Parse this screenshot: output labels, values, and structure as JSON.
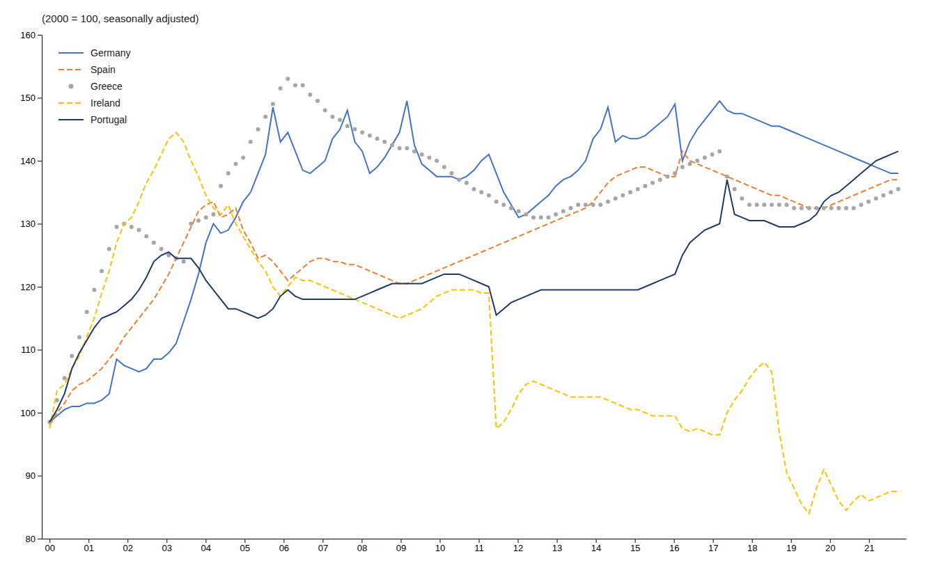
{
  "chart_data": {
    "type": "line",
    "title": "(2000 = 100, seasonally adjusted)",
    "x": [
      2000,
      2000.1908,
      2000.3816,
      2000.5724,
      2000.7632,
      2000.9539,
      2001.1447,
      2001.3355,
      2001.5263,
      2001.7171,
      2001.9079,
      2002.0987,
      2002.2895,
      2002.4803,
      2002.6711,
      2002.8618,
      2003.0526,
      2003.2434,
      2003.4342,
      2003.625,
      2003.8158,
      2004.0066,
      2004.1974,
      2004.3882,
      2004.5789,
      2004.7697,
      2004.9605,
      2005.1513,
      2005.3421,
      2005.5329,
      2005.7237,
      2005.9145,
      2006.1053,
      2006.2961,
      2006.4868,
      2006.6776,
      2006.8684,
      2007.0592,
      2007.25,
      2007.4408,
      2007.6316,
      2007.8224,
      2008.0132,
      2008.2039,
      2008.3947,
      2008.5855,
      2008.7763,
      2008.9671,
      2009.1579,
      2009.3487,
      2009.5395,
      2009.7303,
      2009.9211,
      2010.1118,
      2010.3026,
      2010.4934,
      2010.6842,
      2010.875,
      2011.0658,
      2011.2566,
      2011.4474,
      2011.6382,
      2011.8289,
      2012.0197,
      2012.2105,
      2012.4013,
      2012.5921,
      2012.7829,
      2012.9737,
      2013.1645,
      2013.3553,
      2013.5461,
      2013.7368,
      2013.9276,
      2014.1184,
      2014.3092,
      2014.5,
      2014.6908,
      2014.8816,
      2015.0724,
      2015.2632,
      2015.4539,
      2015.6447,
      2015.8355,
      2016.0263,
      2016.2171,
      2016.4079,
      2016.5987,
      2016.7895,
      2016.9803,
      2017.1711,
      2017.3618,
      2017.5526,
      2017.7434,
      2017.9342,
      2018.125,
      2018.3158,
      2018.5066,
      2018.6974,
      2018.8882,
      2019.0789,
      2019.2697,
      2019.4605,
      2019.6513,
      2019.8421,
      2020.0329,
      2020.2237,
      2020.4145,
      2020.6053,
      2020.7961,
      2020.9868,
      2021.1776,
      2021.3684,
      2021.5592,
      2021.75
    ],
    "series": [
      {
        "name": "Germany",
        "color": "#4472C4",
        "line_style": "solid",
        "values": [
          98.5,
          99.5,
          100.5,
          101.0,
          101.0,
          101.5,
          101.5,
          102.0,
          103.0,
          108.5,
          107.5,
          107.0,
          106.5,
          107.0,
          108.5,
          108.5,
          109.5,
          111.0,
          114.5,
          118.0,
          122.0,
          127.0,
          130.0,
          128.5,
          129.0,
          131.0,
          133.5,
          135.0,
          138.0,
          141.0,
          148.5,
          143.0,
          144.5,
          141.5,
          138.5,
          138.0,
          139.0,
          140.0,
          143.5,
          145.0,
          148.0,
          143.0,
          141.5,
          138.0,
          139.0,
          140.5,
          142.5,
          144.5,
          149.5,
          142.5,
          139.5,
          138.5,
          137.5,
          137.5,
          137.5,
          137.0,
          137.5,
          138.5,
          140.0,
          141.0,
          138.0,
          135.0,
          133.0,
          131.0,
          131.5,
          132.5,
          133.5,
          134.5,
          136.0,
          137.0,
          137.5,
          138.5,
          140.0,
          143.5,
          145.0,
          148.5,
          143.0,
          144.0,
          143.5,
          143.5,
          144.0,
          145.0,
          146.0,
          147.0,
          149.0,
          140.0,
          143.0,
          145.0,
          146.5,
          148.0,
          149.5,
          148.0,
          147.5,
          147.5,
          147.0,
          146.5,
          146.0,
          145.5,
          145.5,
          145.0,
          144.5,
          144.0,
          143.5,
          143.0,
          142.5,
          142.0,
          141.5,
          141.0,
          140.5,
          140.0,
          139.5,
          139.0,
          138.5,
          138.0,
          138.0
        ]
      },
      {
        "name": "Spain",
        "color": "#ED7D31",
        "line_style": "dashed",
        "values": [
          98.0,
          100.0,
          101.5,
          103.5,
          104.5,
          105.0,
          106.0,
          107.0,
          108.5,
          110.0,
          112.0,
          113.5,
          115.0,
          116.5,
          118.0,
          120.0,
          122.0,
          124.5,
          127.0,
          129.5,
          132.0,
          133.0,
          133.5,
          131.0,
          131.5,
          132.5,
          129.0,
          127.0,
          124.5,
          125.0,
          124.0,
          122.5,
          121.0,
          122.0,
          123.0,
          124.0,
          124.5,
          124.5,
          124.0,
          124.0,
          123.5,
          123.5,
          123.0,
          122.5,
          122.0,
          121.5,
          121.0,
          120.5,
          120.5,
          121.0,
          121.5,
          122.0,
          122.5,
          123.0,
          123.5,
          124.0,
          124.5,
          125.0,
          125.5,
          126.0,
          126.5,
          127.0,
          127.5,
          128.0,
          128.5,
          129.0,
          129.5,
          130.0,
          130.5,
          131.0,
          131.5,
          132.0,
          132.5,
          133.5,
          135.0,
          136.5,
          137.5,
          138.0,
          138.5,
          139.0,
          139.0,
          138.5,
          138.0,
          137.5,
          137.5,
          141.5,
          140.0,
          139.5,
          139.0,
          138.5,
          138.0,
          137.5,
          137.0,
          136.5,
          136.0,
          135.5,
          135.0,
          134.5,
          134.5,
          134.0,
          133.5,
          133.0,
          132.5,
          132.5,
          132.5,
          133.0,
          133.5,
          134.0,
          134.5,
          135.0,
          135.5,
          136.0,
          136.5,
          137.0,
          137.0
        ]
      },
      {
        "name": "Greece",
        "color": "#A6A6A6",
        "line_style": "none",
        "marker": "dot",
        "values": [
          98.5,
          102.0,
          105.5,
          109.0,
          112.0,
          116.0,
          119.5,
          122.5,
          126.0,
          129.5,
          130.0,
          129.5,
          129.0,
          128.0,
          127.0,
          126.0,
          125.0,
          124.5,
          124.0,
          130.0,
          130.5,
          131.0,
          131.5,
          136.0,
          138.0,
          139.5,
          140.5,
          143.0,
          145.0,
          147.0,
          149.0,
          151.5,
          153.0,
          152.0,
          152.0,
          150.5,
          149.5,
          148.0,
          147.0,
          146.5,
          145.5,
          145.0,
          144.5,
          144.0,
          143.5,
          143.0,
          142.5,
          142.0,
          142.0,
          141.5,
          141.0,
          140.5,
          140.0,
          139.0,
          138.0,
          137.0,
          136.5,
          135.5,
          135.0,
          134.5,
          133.5,
          133.0,
          132.5,
          132.0,
          131.5,
          131.0,
          131.0,
          131.0,
          131.5,
          132.0,
          132.5,
          133.0,
          133.0,
          133.0,
          133.0,
          133.5,
          134.0,
          134.5,
          135.0,
          135.5,
          136.0,
          136.5,
          137.0,
          137.5,
          138.0,
          139.0,
          139.5,
          140.0,
          140.5,
          141.0,
          141.5,
          137.5,
          135.5,
          134.0,
          133.0,
          133.0,
          133.0,
          133.0,
          133.0,
          133.0,
          132.5,
          132.5,
          132.5,
          132.5,
          132.5,
          132.5,
          132.5,
          132.5,
          132.5,
          133.0,
          133.5,
          134.0,
          134.5,
          135.0,
          135.5
        ]
      },
      {
        "name": "Ireland",
        "color": "#FFC000",
        "line_style": "dashed",
        "values": [
          97.5,
          103.5,
          104.5,
          107.0,
          109.0,
          112.0,
          115.0,
          119.0,
          122.5,
          127.0,
          130.0,
          131.0,
          133.5,
          136.5,
          138.5,
          141.0,
          143.5,
          144.5,
          143.0,
          140.0,
          137.5,
          134.5,
          132.5,
          131.5,
          133.0,
          130.0,
          128.0,
          126.0,
          124.0,
          122.5,
          120.0,
          118.5,
          120.0,
          121.5,
          121.0,
          121.0,
          120.5,
          120.0,
          119.5,
          119.0,
          118.5,
          118.0,
          117.5,
          117.0,
          116.5,
          116.0,
          115.5,
          115.0,
          115.5,
          116.0,
          116.5,
          117.5,
          118.5,
          119.0,
          119.5,
          119.5,
          119.5,
          119.5,
          119.0,
          119.0,
          97.5,
          98.5,
          100.5,
          103.0,
          104.5,
          105.0,
          104.5,
          104.0,
          103.5,
          103.0,
          102.5,
          102.5,
          102.5,
          102.5,
          102.5,
          102.0,
          101.5,
          101.0,
          100.5,
          100.5,
          100.0,
          99.5,
          99.5,
          99.5,
          99.5,
          97.5,
          97.0,
          97.5,
          97.0,
          96.5,
          96.5,
          100.0,
          102.0,
          103.5,
          105.5,
          107.0,
          108.0,
          106.5,
          97.0,
          90.5,
          88.0,
          85.5,
          84.0,
          88.0,
          91.0,
          88.5,
          86.0,
          84.5,
          86.0,
          87.0,
          86.0,
          86.5,
          87.0,
          87.5,
          87.5
        ]
      },
      {
        "name": "Portugal",
        "color": "#1F3864",
        "line_style": "solid",
        "values": [
          98.5,
          100.5,
          103.0,
          107.0,
          109.5,
          111.5,
          113.5,
          115.0,
          115.5,
          116.0,
          117.0,
          118.0,
          119.5,
          121.5,
          124.0,
          125.0,
          125.5,
          124.5,
          124.5,
          124.5,
          123.0,
          121.0,
          119.5,
          118.0,
          116.5,
          116.5,
          116.0,
          115.5,
          115.0,
          115.5,
          116.5,
          118.5,
          119.5,
          118.5,
          118.0,
          118.0,
          118.0,
          118.0,
          118.0,
          118.0,
          118.0,
          118.0,
          118.5,
          119.0,
          119.5,
          120.0,
          120.5,
          120.5,
          120.5,
          120.5,
          120.5,
          121.0,
          121.5,
          122.0,
          122.0,
          122.0,
          121.5,
          121.0,
          120.5,
          120.0,
          115.5,
          116.5,
          117.5,
          118.0,
          118.5,
          119.0,
          119.5,
          119.5,
          119.5,
          119.5,
          119.5,
          119.5,
          119.5,
          119.5,
          119.5,
          119.5,
          119.5,
          119.5,
          119.5,
          119.5,
          120.0,
          120.5,
          121.0,
          121.5,
          122.0,
          125.0,
          127.0,
          128.0,
          129.0,
          129.5,
          130.0,
          137.0,
          131.5,
          131.0,
          130.5,
          130.5,
          130.5,
          130.0,
          129.5,
          129.5,
          129.5,
          130.0,
          130.5,
          131.5,
          133.5,
          134.5,
          135.0,
          136.0,
          137.0,
          138.0,
          139.0,
          140.0,
          140.5,
          141.0,
          141.5
        ]
      }
    ],
    "xlim": [
      1999.8,
      2021.95
    ],
    "xticks": [
      {
        "value": 2000,
        "label": "00"
      },
      {
        "value": 2001,
        "label": "01"
      },
      {
        "value": 2002,
        "label": "02"
      },
      {
        "value": 2003,
        "label": "03"
      },
      {
        "value": 2004,
        "label": "04"
      },
      {
        "value": 2005,
        "label": "05"
      },
      {
        "value": 2006,
        "label": "06"
      },
      {
        "value": 2007,
        "label": "07"
      },
      {
        "value": 2008,
        "label": "08"
      },
      {
        "value": 2009,
        "label": "09"
      },
      {
        "value": 2010,
        "label": "10"
      },
      {
        "value": 2011,
        "label": "11"
      },
      {
        "value": 2012,
        "label": "12"
      },
      {
        "value": 2013,
        "label": "13"
      },
      {
        "value": 2014,
        "label": "14"
      },
      {
        "value": 2015,
        "label": "15"
      },
      {
        "value": 2016,
        "label": "16"
      },
      {
        "value": 2017,
        "label": "17"
      },
      {
        "value": 2018,
        "label": "18"
      },
      {
        "value": 2019,
        "label": "19"
      },
      {
        "value": 2020,
        "label": "20"
      },
      {
        "value": 2021,
        "label": "21"
      }
    ],
    "ylim": [
      80,
      160
    ],
    "yticks": [
      80,
      90,
      100,
      110,
      120,
      130,
      140,
      150,
      160
    ],
    "grid": false,
    "legend": "upper left"
  }
}
